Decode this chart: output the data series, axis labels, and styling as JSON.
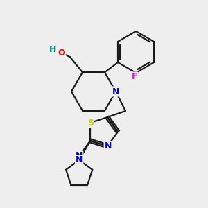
{
  "bg_color": "#eeeeee",
  "bond_color": "#1a1a1a",
  "atom_colors": {
    "O": "#ff0000",
    "H": "#008080",
    "N": "#0000ee",
    "S": "#cccc00",
    "F": "#ff00ff"
  },
  "figsize": [
    3.0,
    3.0
  ],
  "dpi": 100
}
